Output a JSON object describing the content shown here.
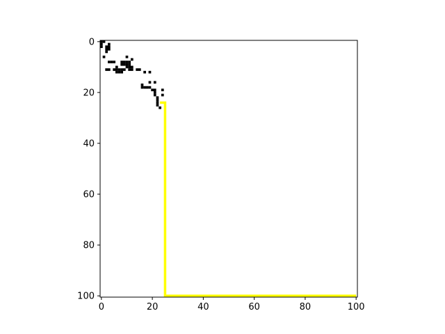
{
  "chart_data": {
    "type": "heatmap",
    "title": "",
    "xlabel": "",
    "ylabel": "",
    "grid_size": [
      101,
      101
    ],
    "xlim": [
      0,
      101
    ],
    "ylim": [
      101,
      0
    ],
    "y_inverted": true,
    "x_ticks": [
      "0",
      "20",
      "40",
      "60",
      "80",
      "100"
    ],
    "y_ticks": [
      "0",
      "20",
      "40",
      "60",
      "80",
      "100"
    ],
    "grid": false,
    "legend": "none",
    "colors": {
      "background": "#ffffff",
      "obstacle": "#000000",
      "path": "#ffff00"
    },
    "obstacles": [
      [
        0,
        0
      ],
      [
        1,
        0
      ],
      [
        0,
        1
      ],
      [
        3,
        1
      ],
      [
        0,
        2
      ],
      [
        2,
        2
      ],
      [
        3,
        2
      ],
      [
        2,
        3
      ],
      [
        3,
        3
      ],
      [
        2,
        4
      ],
      [
        1,
        6
      ],
      [
        10,
        6
      ],
      [
        12,
        7
      ],
      [
        3,
        8
      ],
      [
        4,
        8
      ],
      [
        5,
        8
      ],
      [
        8,
        8
      ],
      [
        9,
        8
      ],
      [
        10,
        8
      ],
      [
        11,
        8
      ],
      [
        8,
        9
      ],
      [
        9,
        9
      ],
      [
        10,
        9
      ],
      [
        11,
        9
      ],
      [
        6,
        10
      ],
      [
        10,
        10
      ],
      [
        11,
        10
      ],
      [
        12,
        10
      ],
      [
        2,
        11
      ],
      [
        3,
        11
      ],
      [
        5,
        11
      ],
      [
        6,
        11
      ],
      [
        7,
        11
      ],
      [
        8,
        11
      ],
      [
        9,
        11
      ],
      [
        11,
        11
      ],
      [
        12,
        11
      ],
      [
        14,
        11
      ],
      [
        15,
        11
      ],
      [
        6,
        12
      ],
      [
        7,
        12
      ],
      [
        8,
        12
      ],
      [
        17,
        12
      ],
      [
        19,
        12
      ],
      [
        19,
        16
      ],
      [
        21,
        16
      ],
      [
        16,
        17
      ],
      [
        16,
        18
      ],
      [
        17,
        18
      ],
      [
        18,
        18
      ],
      [
        19,
        18
      ],
      [
        20,
        19
      ],
      [
        21,
        19
      ],
      [
        24,
        19
      ],
      [
        21,
        20
      ],
      [
        21,
        21
      ],
      [
        24,
        21
      ],
      [
        22,
        22
      ],
      [
        22,
        23
      ],
      [
        22,
        24
      ],
      [
        22,
        25
      ],
      [
        23,
        26
      ]
    ],
    "path": [
      [
        23,
        24
      ],
      [
        24,
        24
      ],
      [
        25,
        24
      ],
      [
        25,
        25
      ],
      [
        25,
        26
      ],
      [
        25,
        27
      ],
      [
        25,
        28
      ],
      [
        25,
        29
      ],
      [
        25,
        30
      ],
      [
        25,
        40
      ],
      [
        25,
        50
      ],
      [
        25,
        60
      ],
      [
        25,
        70
      ],
      [
        25,
        80
      ],
      [
        25,
        90
      ],
      [
        25,
        100
      ],
      [
        26,
        100
      ],
      [
        30,
        100
      ],
      [
        40,
        100
      ],
      [
        50,
        100
      ],
      [
        60,
        100
      ],
      [
        70,
        100
      ],
      [
        80,
        100
      ],
      [
        90,
        100
      ],
      [
        100,
        100
      ]
    ]
  }
}
